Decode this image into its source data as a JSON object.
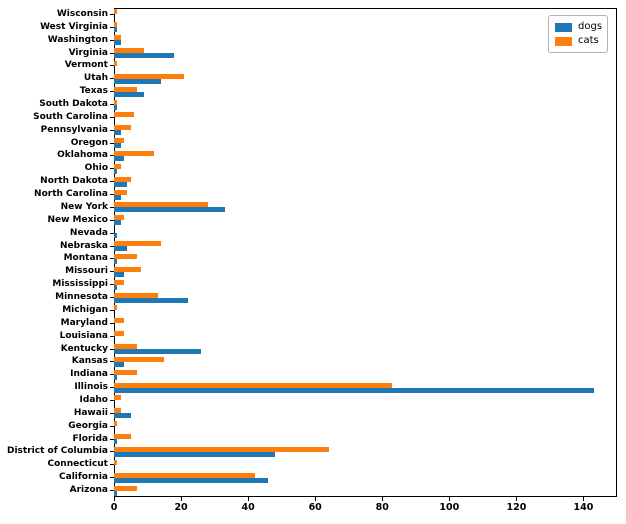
{
  "chart_data": {
    "type": "bar",
    "orientation": "horizontal",
    "title": "",
    "xlabel": "",
    "ylabel": "",
    "grid": false,
    "legend_position": "upper right",
    "xlim": [
      0,
      150
    ],
    "x_ticks": [
      0,
      20,
      40,
      60,
      80,
      100,
      120,
      140
    ],
    "categories": [
      "Wisconsin",
      "West Virginia",
      "Washington",
      "Virginia",
      "Vermont",
      "Utah",
      "Texas",
      "South Dakota",
      "South Carolina",
      "Pennsylvania",
      "Oregon",
      "Oklahoma",
      "Ohio",
      "North Dakota",
      "North Carolina",
      "New York",
      "New Mexico",
      "Nevada",
      "Nebraska",
      "Montana",
      "Missouri",
      "Mississippi",
      "Minnesota",
      "Michigan",
      "Maryland",
      "Louisiana",
      "Kentucky",
      "Kansas",
      "Indiana",
      "Illinois",
      "Idaho",
      "Hawaii",
      "Georgia",
      "Florida",
      "District of Columbia",
      "Connecticut",
      "California",
      "Arizona"
    ],
    "series": [
      {
        "name": "dogs",
        "color": "#1f77b4",
        "values": [
          0,
          1,
          2,
          18,
          0,
          14,
          9,
          1,
          0,
          2,
          2,
          3,
          1,
          4,
          2,
          33,
          2,
          1,
          4,
          1,
          3,
          1,
          22,
          0,
          0,
          0,
          26,
          3,
          1,
          143,
          0,
          5,
          0,
          1,
          48,
          0,
          46,
          1
        ]
      },
      {
        "name": "cats",
        "color": "#ff7f0e",
        "values": [
          1,
          1,
          2,
          9,
          1,
          21,
          7,
          1,
          6,
          5,
          3,
          12,
          2,
          5,
          4,
          28,
          3,
          0,
          14,
          7,
          8,
          3,
          13,
          1,
          3,
          3,
          7,
          15,
          7,
          83,
          2,
          2,
          1,
          5,
          64,
          1,
          42,
          7
        ]
      }
    ]
  }
}
